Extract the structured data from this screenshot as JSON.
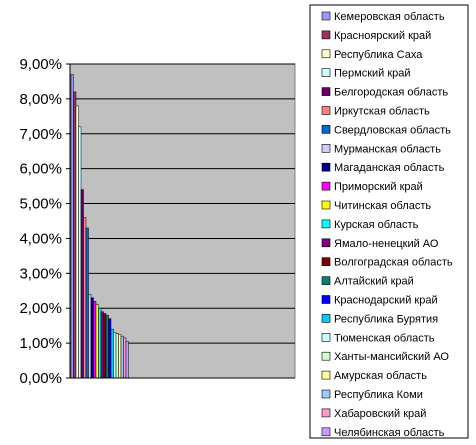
{
  "chart_data": {
    "type": "bar",
    "title": "",
    "xlabel": "",
    "ylabel": "",
    "ylim": [
      0,
      9
    ],
    "y_ticks": [
      "0,00%",
      "1,00%",
      "2,00%",
      "3,00%",
      "4,00%",
      "5,00%",
      "6,00%",
      "7,00%",
      "8,00%",
      "9,00%"
    ],
    "grid": true,
    "plot_background": "#c0c0c0",
    "legend_position": "right",
    "series": [
      {
        "name": "Кемеровская область",
        "color": "#9999ff",
        "values": [
          8.7
        ]
      },
      {
        "name": "Красноярский край",
        "color": "#993366",
        "values": [
          8.2
        ]
      },
      {
        "name": "Республика Саха",
        "color": "#ffffcc",
        "values": [
          7.8
        ]
      },
      {
        "name": "Пермский край",
        "color": "#ccffff",
        "values": [
          7.2
        ]
      },
      {
        "name": "Белгородская область",
        "color": "#660066",
        "values": [
          5.4
        ]
      },
      {
        "name": "Иркутская область",
        "color": "#ff8080",
        "values": [
          4.6
        ]
      },
      {
        "name": "Свердловская область",
        "color": "#0066cc",
        "values": [
          4.3
        ]
      },
      {
        "name": "Мурманская область",
        "color": "#ccccff",
        "values": [
          2.4
        ]
      },
      {
        "name": "Магаданская область",
        "color": "#000080",
        "values": [
          2.3
        ]
      },
      {
        "name": "Приморский край",
        "color": "#ff00ff",
        "values": [
          2.2
        ]
      },
      {
        "name": "Читинская область",
        "color": "#ffff00",
        "values": [
          2.1
        ]
      },
      {
        "name": "Курская область",
        "color": "#00ffff",
        "values": [
          2.0
        ]
      },
      {
        "name": "Ямало-ненецкий АО",
        "color": "#800080",
        "values": [
          1.9
        ]
      },
      {
        "name": "Волгоградская область",
        "color": "#800000",
        "values": [
          1.85
        ]
      },
      {
        "name": "Алтайский край",
        "color": "#008080",
        "values": [
          1.8
        ]
      },
      {
        "name": "Краснодарский край",
        "color": "#0000ff",
        "values": [
          1.7
        ]
      },
      {
        "name": "Республика Бурятия",
        "color": "#00ccff",
        "values": [
          1.4
        ]
      },
      {
        "name": "Тюменская область",
        "color": "#ccffff",
        "values": [
          1.3
        ]
      },
      {
        "name": "Ханты-мансийский АО",
        "color": "#ccffcc",
        "values": [
          1.27
        ]
      },
      {
        "name": "Амурская область",
        "color": "#ffff99",
        "values": [
          1.25
        ]
      },
      {
        "name": "Республика Коми",
        "color": "#99ccff",
        "values": [
          1.2
        ]
      },
      {
        "name": "Хабаровский край",
        "color": "#ff99cc",
        "values": [
          1.15
        ]
      },
      {
        "name": "Челябинская  область",
        "color": "#cc99ff",
        "values": [
          1.05
        ]
      }
    ]
  }
}
